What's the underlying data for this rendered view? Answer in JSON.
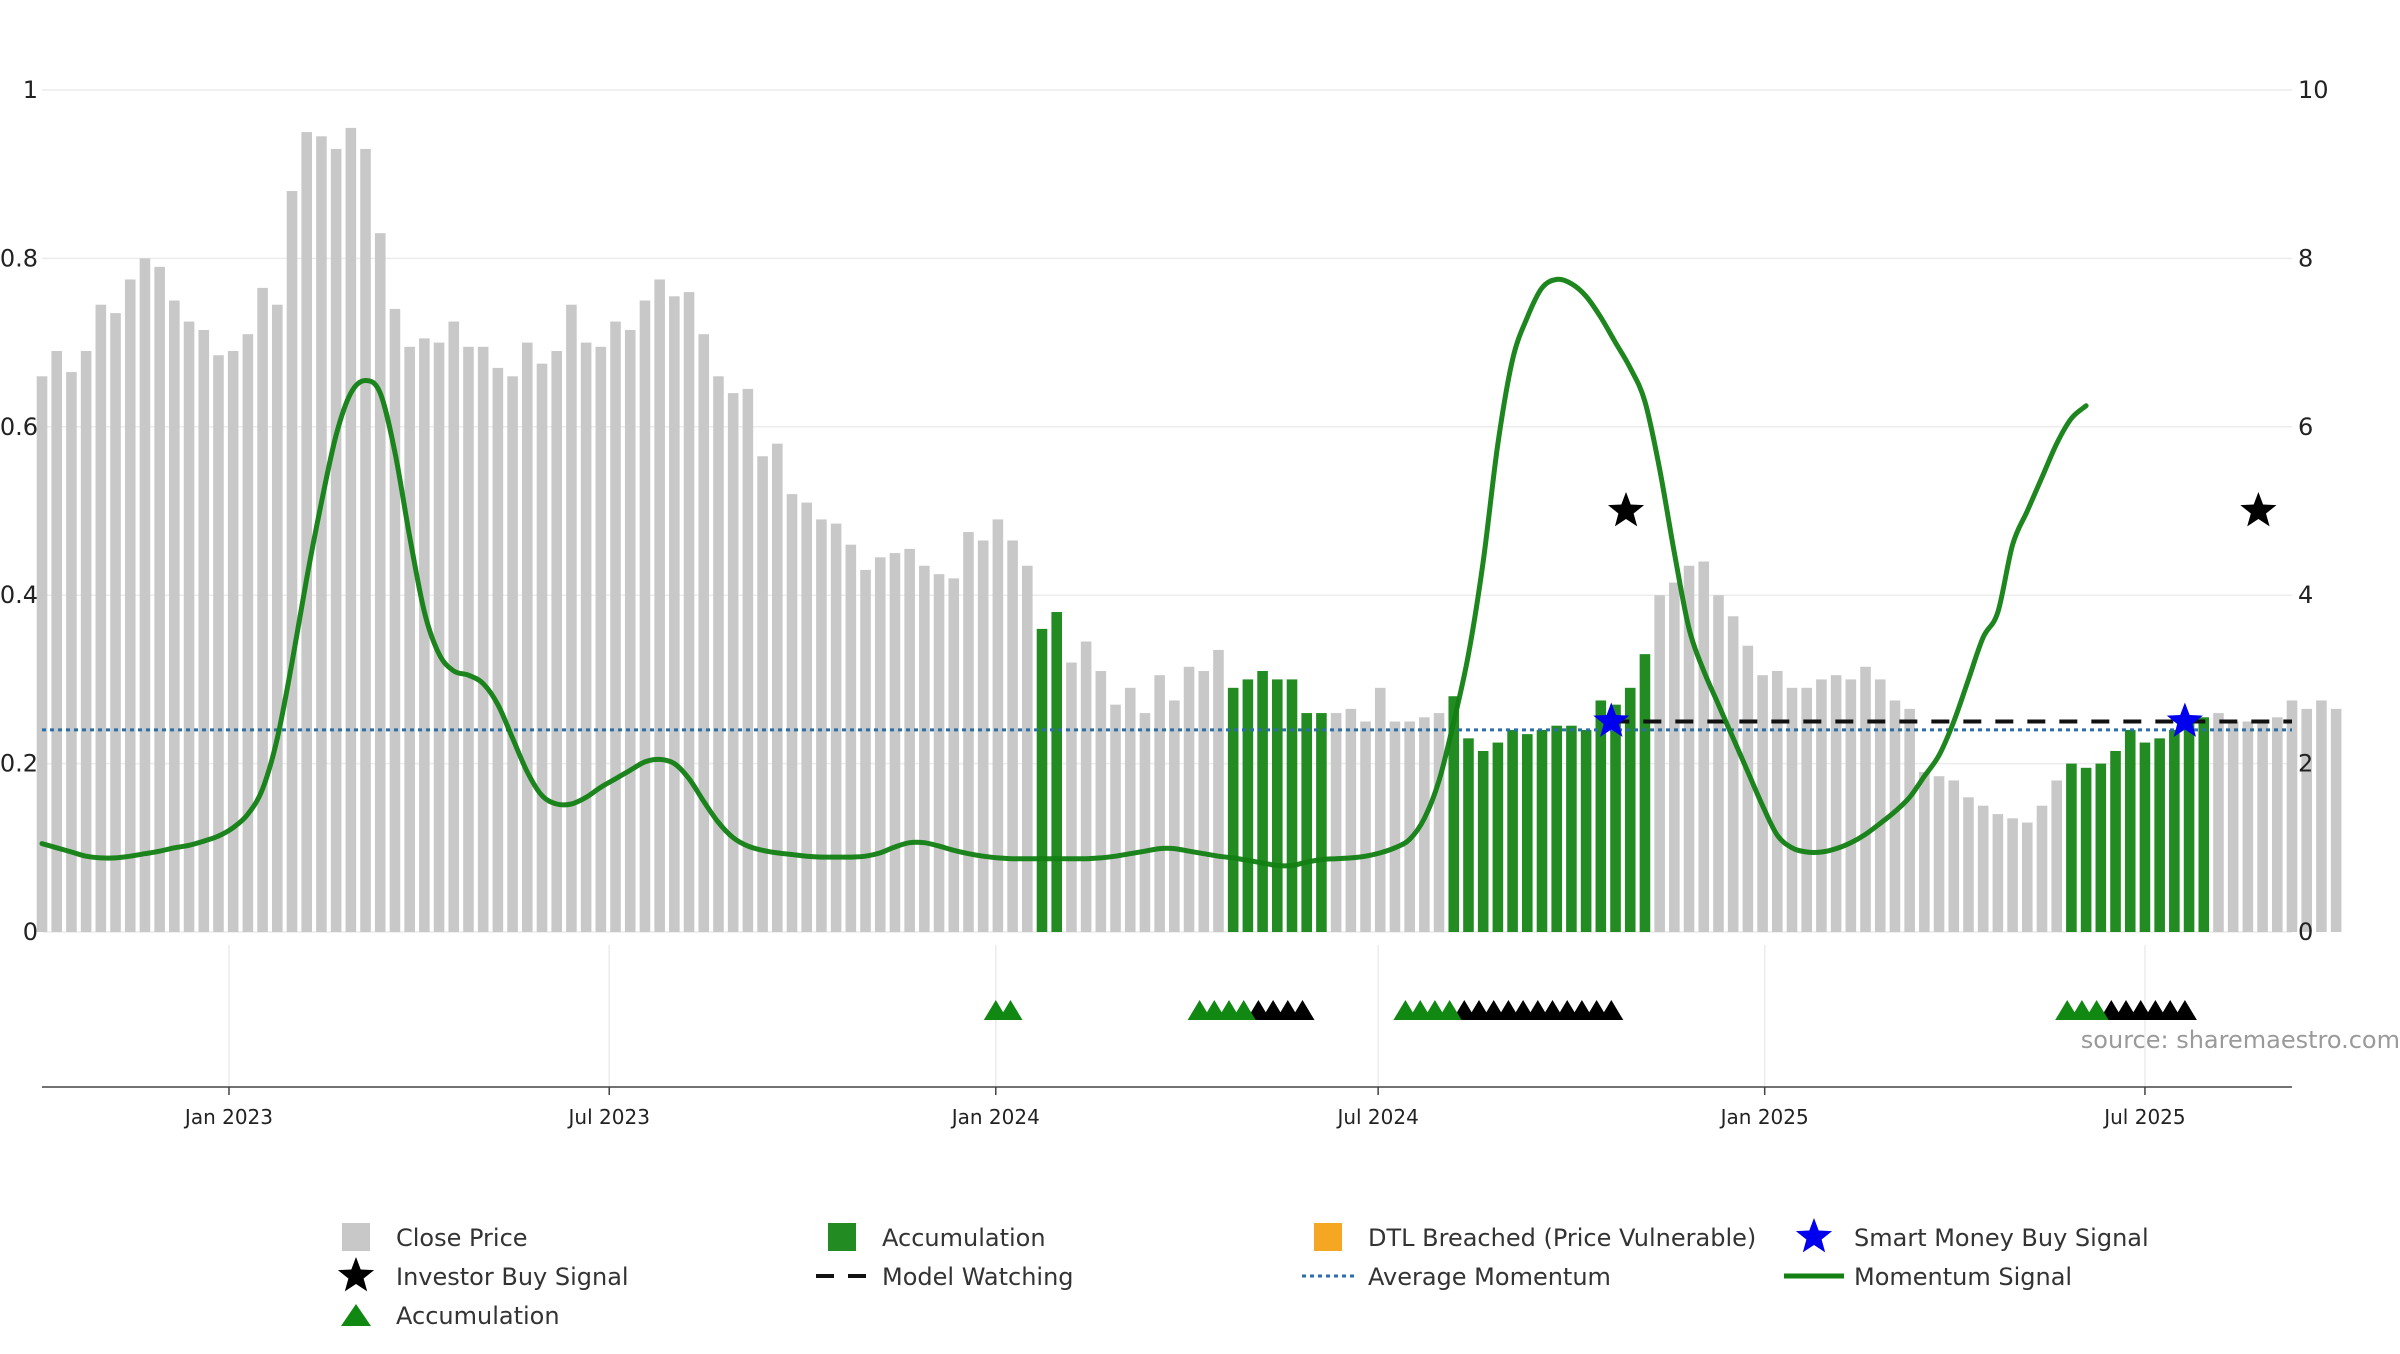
{
  "chart_data": {
    "type": "bar",
    "watermark": "source: sharemaestro.com",
    "colors": {
      "close_bar": "#c8c8c8",
      "accumulation_bar": "#228b22",
      "accumulation_marker": "#118811",
      "investor_signal": "#000000",
      "smart_money_signal": "#0000ee",
      "model_watching": "#111111",
      "average_momentum": "#2a6fa8",
      "momentum_signal": "#128012",
      "dtl_breached": "#f5a623"
    },
    "left_axis": {
      "ylim": [
        0,
        1
      ],
      "ticks": [
        0,
        0.2,
        0.4,
        0.6,
        0.8,
        1
      ],
      "tick_labels": [
        "0",
        "0.2",
        "0.4",
        "0.6",
        "0.8",
        "1"
      ]
    },
    "right_axis": {
      "ylim": [
        0,
        10
      ],
      "ticks": [
        0,
        2,
        4,
        6,
        8,
        10
      ],
      "tick_labels": [
        "0",
        "2",
        "4",
        "6",
        "8",
        "10"
      ]
    },
    "x_axis": {
      "type": "date",
      "range": [
        "2022-10-04",
        "2025-09-09"
      ],
      "ticks": [
        "2023-01-01",
        "2023-07-01",
        "2024-01-01",
        "2024-07-01",
        "2025-01-01",
        "2025-07-01"
      ],
      "tick_labels": [
        "Jan 2023",
        "Jul 2023",
        "Jan 2024",
        "Jul 2024",
        "Jan 2025",
        "Jul 2025"
      ]
    },
    "close_price": {
      "start_date": "2022-10-04",
      "interval_days": 7,
      "values": [
        0.66,
        0.69,
        0.665,
        0.69,
        0.745,
        0.735,
        0.775,
        0.8,
        0.79,
        0.75,
        0.725,
        0.715,
        0.685,
        0.69,
        0.71,
        0.765,
        0.745,
        0.88,
        0.95,
        0.945,
        0.93,
        0.955,
        0.93,
        0.83,
        0.74,
        0.695,
        0.705,
        0.7,
        0.725,
        0.695,
        0.695,
        0.67,
        0.66,
        0.7,
        0.675,
        0.69,
        0.745,
        0.7,
        0.695,
        0.725,
        0.715,
        0.75,
        0.775,
        0.755,
        0.76,
        0.71,
        0.66,
        0.64,
        0.645,
        0.565,
        0.58,
        0.52,
        0.51,
        0.49,
        0.485,
        0.46,
        0.43,
        0.445,
        0.45,
        0.455,
        0.435,
        0.425,
        0.42,
        0.475,
        0.465,
        0.49,
        0.465,
        0.435,
        0.36,
        0.38,
        0.32,
        0.345,
        0.31,
        0.27,
        0.29,
        0.26,
        0.305,
        0.275,
        0.315,
        0.31,
        0.335,
        0.29,
        0.3,
        0.31,
        0.3,
        0.3,
        0.26,
        0.26,
        0.26,
        0.265,
        0.25,
        0.29,
        0.25,
        0.25,
        0.255,
        0.26,
        0.28,
        0.23,
        0.215,
        0.225,
        0.24,
        0.235,
        0.24,
        0.245,
        0.245,
        0.24,
        0.275,
        0.27,
        0.29,
        0.33,
        0.4,
        0.415,
        0.435,
        0.44,
        0.4,
        0.375,
        0.34,
        0.305,
        0.31,
        0.29,
        0.29,
        0.3,
        0.305,
        0.3,
        0.315,
        0.3,
        0.275,
        0.265,
        0.19,
        0.185,
        0.18,
        0.16,
        0.15,
        0.14,
        0.135,
        0.13,
        0.15,
        0.18,
        0.2,
        0.195,
        0.2,
        0.215,
        0.24,
        0.225,
        0.23,
        0.24,
        0.25,
        0.255,
        0.26,
        0.25,
        0.25,
        0.25,
        0.255,
        0.275,
        0.265,
        0.275,
        0.265
      ]
    },
    "accumulation_bar_ranges": [
      [
        68,
        69
      ],
      [
        81,
        87
      ],
      [
        96,
        109
      ],
      [
        138,
        147
      ]
    ],
    "accumulation_marker_dates": [
      "2024-01-01",
      "2024-01-08",
      "2024-04-07",
      "2024-04-14",
      "2024-04-21",
      "2024-04-28",
      "2024-07-14",
      "2024-07-21",
      "2024-07-28",
      "2024-08-04",
      "2025-05-25",
      "2025-06-01",
      "2025-06-08"
    ],
    "model_watching_marker_dates": [
      "2024-05-05",
      "2024-05-12",
      "2024-05-19",
      "2024-05-26",
      "2024-08-11",
      "2024-08-18",
      "2024-08-25",
      "2024-09-01",
      "2024-09-08",
      "2024-09-15",
      "2024-09-22",
      "2024-09-29",
      "2024-10-06",
      "2024-10-13",
      "2024-10-20",
      "2025-06-15",
      "2025-06-22",
      "2025-06-29",
      "2025-07-06",
      "2025-07-13",
      "2025-07-20"
    ],
    "model_watching_line": {
      "value": 2.5,
      "from": "2024-10-20",
      "to": "2025-09-09"
    },
    "average_momentum_value": 2.4,
    "momentum_signal": {
      "start_date": "2022-10-04",
      "interval_days": 7,
      "values": [
        1.05,
        1.0,
        0.95,
        0.9,
        0.88,
        0.88,
        0.9,
        0.93,
        0.96,
        1.0,
        1.03,
        1.08,
        1.14,
        1.24,
        1.4,
        1.7,
        2.3,
        3.2,
        4.2,
        5.1,
        5.9,
        6.4,
        6.55,
        6.4,
        5.7,
        4.7,
        3.8,
        3.3,
        3.1,
        3.05,
        2.95,
        2.7,
        2.3,
        1.9,
        1.62,
        1.52,
        1.52,
        1.6,
        1.72,
        1.82,
        1.92,
        2.02,
        2.05,
        2.0,
        1.82,
        1.55,
        1.3,
        1.12,
        1.02,
        0.97,
        0.94,
        0.92,
        0.9,
        0.89,
        0.89,
        0.89,
        0.9,
        0.94,
        1.01,
        1.06,
        1.06,
        1.02,
        0.97,
        0.93,
        0.9,
        0.88,
        0.87,
        0.87,
        0.87,
        0.87,
        0.87,
        0.87,
        0.88,
        0.9,
        0.93,
        0.96,
        0.99,
        0.99,
        0.96,
        0.93,
        0.9,
        0.88,
        0.85,
        0.82,
        0.79,
        0.79,
        0.83,
        0.86,
        0.87,
        0.88,
        0.9,
        0.94,
        1.0,
        1.1,
        1.35,
        1.8,
        2.5,
        3.3,
        4.4,
        5.8,
        6.8,
        7.3,
        7.65,
        7.75,
        7.7,
        7.55,
        7.3,
        7.0,
        6.7,
        6.3,
        5.5,
        4.5,
        3.6,
        3.1,
        2.7,
        2.3,
        1.9,
        1.5,
        1.15,
        1.0,
        0.95,
        0.95,
        0.99,
        1.06,
        1.16,
        1.29,
        1.43,
        1.6,
        1.85,
        2.1,
        2.5,
        3.0,
        3.5,
        3.8,
        4.6,
        5.0,
        5.4,
        5.8,
        6.1,
        6.25
      ]
    },
    "investor_buy_signals": [
      {
        "date": "2024-10-27",
        "y": 5.0
      },
      {
        "date": "2025-08-24",
        "y": 5.0
      }
    ],
    "smart_money_buy_signals": [
      {
        "date": "2024-10-20",
        "y": 2.5
      },
      {
        "date": "2025-07-20",
        "y": 2.5
      }
    ],
    "legend": {
      "close_price": "Close Price",
      "accumulation_bar": "Accumulation",
      "dtl_breached": "DTL Breached (Price Vulnerable)",
      "smart_money": "Smart Money Buy Signal",
      "investor_buy": "Investor Buy Signal",
      "model_watching": "Model Watching",
      "average_momentum": "Average Momentum",
      "momentum_signal": "Momentum Signal",
      "accumulation_marker": "Accumulation"
    }
  }
}
